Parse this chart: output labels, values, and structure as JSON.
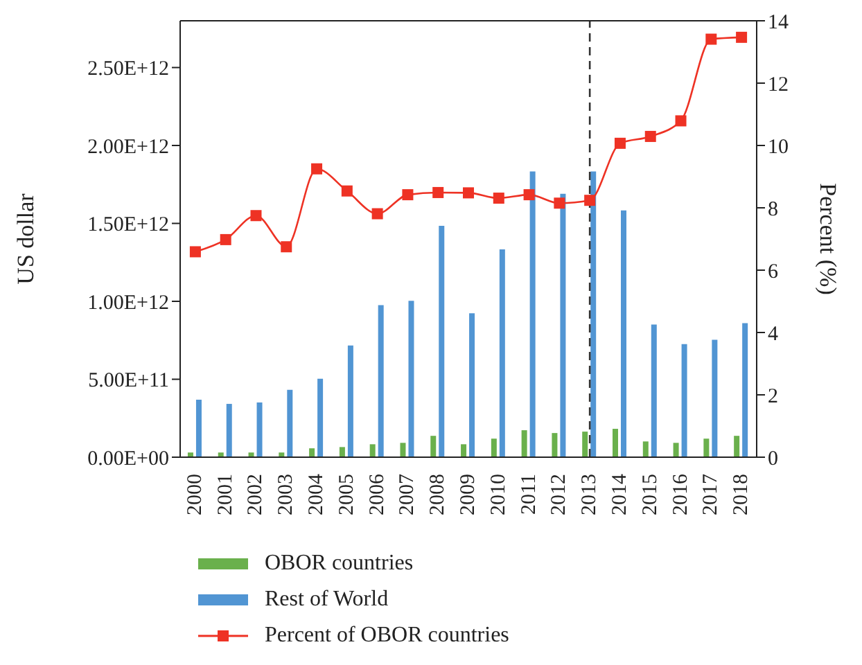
{
  "chart_data": {
    "type": "bar",
    "categories": [
      "2000",
      "2001",
      "2002",
      "2003",
      "2004",
      "2005",
      "2006",
      "2007",
      "2008",
      "2009",
      "2010",
      "2011",
      "2012",
      "2013",
      "2014",
      "2015",
      "2016",
      "2017",
      "2018"
    ],
    "ylabel": "US dollar",
    "y2label": "Percent (%)",
    "series": [
      {
        "name": "OBOR countries",
        "color": "#6ab04c",
        "values": [
          30000000000.0,
          30000000000.0,
          30000000000.0,
          30000000000.0,
          57000000000.0,
          65000000000.0,
          83000000000.0,
          92000000000.0,
          137000000000.0,
          83000000000.0,
          119000000000.0,
          173000000000.0,
          155000000000.0,
          164000000000.0,
          182000000000.0,
          101000000000.0,
          92000000000.0,
          119000000000.0,
          137000000000.0
        ]
      },
      {
        "name": "Rest of World",
        "color": "#5195d3",
        "values": [
          369000000000.0,
          342000000000.0,
          351000000000.0,
          432000000000.0,
          503000000000.0,
          717000000000.0,
          976000000000.0,
          1003000000000.0,
          1485000000000.0,
          923000000000.0,
          1333000000000.0,
          1833000000000.0,
          1690000000000.0,
          1833000000000.0,
          1583000000000.0,
          851000000000.0,
          726000000000.0,
          753000000000.0,
          860000000000.0
        ]
      },
      {
        "name": "Percent of OBOR countries",
        "type": "line",
        "axis": "y2",
        "color": "#ee3224",
        "marker": "square",
        "values": [
          6.59,
          6.98,
          7.75,
          6.75,
          9.25,
          8.54,
          7.81,
          8.42,
          8.49,
          8.48,
          8.31,
          8.42,
          8.15,
          8.24,
          10.07,
          10.29,
          10.79,
          13.41,
          13.47
        ]
      }
    ],
    "ylim": [
      0,
      2800000000000.0
    ],
    "yticks": [
      {
        "value": 0,
        "label": "0.00E+00"
      },
      {
        "value": 500000000000.0,
        "label": "5.00E+11"
      },
      {
        "value": 1000000000000.0,
        "label": "1.00E+12"
      },
      {
        "value": 1500000000000.0,
        "label": "1.50E+12"
      },
      {
        "value": 2000000000000.0,
        "label": "2.00E+12"
      },
      {
        "value": 2500000000000.0,
        "label": "2.50E+12"
      }
    ],
    "y2lim": [
      0,
      14
    ],
    "y2ticks": [
      0,
      2,
      4,
      6,
      8,
      10,
      12,
      14
    ],
    "ref_lines": [
      {
        "axis": "x",
        "value": "2013",
        "color": "#333333",
        "line_style": "dashed"
      }
    ],
    "grid": false,
    "legend": "bottom"
  }
}
